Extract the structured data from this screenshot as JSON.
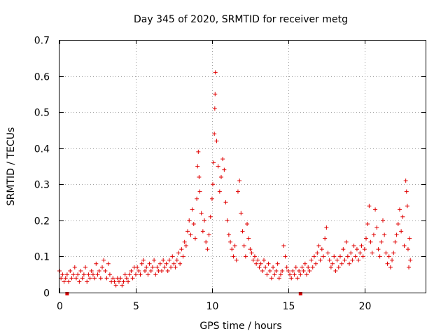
{
  "chart_data": {
    "type": "scatter",
    "title": "Day 345 of 2020, SRMTID for receiver metg",
    "xlabel": "GPS time / hours",
    "ylabel": "SRMTID / TECUs",
    "xlim": [
      0,
      24
    ],
    "ylim": [
      0,
      0.7
    ],
    "x_ticks": [
      0,
      5,
      10,
      15,
      20
    ],
    "x_tick_labels": [
      "0",
      "5",
      "10",
      "15",
      "20"
    ],
    "y_ticks": [
      0,
      0.1,
      0.2,
      0.3,
      0.4,
      0.5,
      0.6,
      0.7
    ],
    "y_tick_labels": [
      "0",
      "0.1",
      "0.2",
      "0.3",
      "0.4",
      "0.5",
      "0.6",
      "0.7"
    ],
    "grid": true,
    "marker": "plus",
    "color": "#e00000",
    "series": [
      {
        "name": "SRMTID",
        "points": [
          [
            0.0,
            0.06
          ],
          [
            0.1,
            0.04
          ],
          [
            0.2,
            0.05
          ],
          [
            0.3,
            0.03
          ],
          [
            0.4,
            0.04
          ],
          [
            0.5,
            0.05
          ],
          [
            0.6,
            0.03
          ],
          [
            0.7,
            0.06
          ],
          [
            0.8,
            0.04
          ],
          [
            0.9,
            0.05
          ],
          [
            1.0,
            0.07
          ],
          [
            1.1,
            0.04
          ],
          [
            1.2,
            0.05
          ],
          [
            1.3,
            0.03
          ],
          [
            1.4,
            0.06
          ],
          [
            1.5,
            0.04
          ],
          [
            1.6,
            0.05
          ],
          [
            1.7,
            0.07
          ],
          [
            1.8,
            0.03
          ],
          [
            1.9,
            0.05
          ],
          [
            2.0,
            0.04
          ],
          [
            2.1,
            0.06
          ],
          [
            2.2,
            0.05
          ],
          [
            2.3,
            0.04
          ],
          [
            2.4,
            0.08
          ],
          [
            2.5,
            0.05
          ],
          [
            2.6,
            0.06
          ],
          [
            2.7,
            0.04
          ],
          [
            2.8,
            0.07
          ],
          [
            2.9,
            0.09
          ],
          [
            3.0,
            0.06
          ],
          [
            3.1,
            0.04
          ],
          [
            3.2,
            0.08
          ],
          [
            3.3,
            0.05
          ],
          [
            3.4,
            0.03
          ],
          [
            3.5,
            0.04
          ],
          [
            3.6,
            0.03
          ],
          [
            3.7,
            0.02
          ],
          [
            3.8,
            0.04
          ],
          [
            3.9,
            0.03
          ],
          [
            4.0,
            0.04
          ],
          [
            4.1,
            0.02
          ],
          [
            4.2,
            0.03
          ],
          [
            4.3,
            0.05
          ],
          [
            4.4,
            0.04
          ],
          [
            4.5,
            0.03
          ],
          [
            4.6,
            0.05
          ],
          [
            4.7,
            0.06
          ],
          [
            4.8,
            0.04
          ],
          [
            4.9,
            0.07
          ],
          [
            5.0,
            0.05
          ],
          [
            5.1,
            0.07
          ],
          [
            5.2,
            0.06
          ],
          [
            5.3,
            0.05
          ],
          [
            5.4,
            0.08
          ],
          [
            5.5,
            0.09
          ],
          [
            5.6,
            0.06
          ],
          [
            5.7,
            0.07
          ],
          [
            5.8,
            0.05
          ],
          [
            5.9,
            0.08
          ],
          [
            6.0,
            0.06
          ],
          [
            6.1,
            0.07
          ],
          [
            6.2,
            0.09
          ],
          [
            6.3,
            0.05
          ],
          [
            6.4,
            0.07
          ],
          [
            6.5,
            0.06
          ],
          [
            6.6,
            0.08
          ],
          [
            6.7,
            0.06
          ],
          [
            6.8,
            0.09
          ],
          [
            6.9,
            0.07
          ],
          [
            7.0,
            0.08
          ],
          [
            7.1,
            0.06
          ],
          [
            7.2,
            0.09
          ],
          [
            7.3,
            0.07
          ],
          [
            7.4,
            0.1
          ],
          [
            7.5,
            0.08
          ],
          [
            7.6,
            0.07
          ],
          [
            7.7,
            0.09
          ],
          [
            7.8,
            0.11
          ],
          [
            7.9,
            0.08
          ],
          [
            8.0,
            0.12
          ],
          [
            8.1,
            0.1
          ],
          [
            8.2,
            0.14
          ],
          [
            8.3,
            0.13
          ],
          [
            8.4,
            0.17
          ],
          [
            8.5,
            0.2
          ],
          [
            8.6,
            0.16
          ],
          [
            8.7,
            0.23
          ],
          [
            8.8,
            0.19
          ],
          [
            8.9,
            0.15
          ],
          [
            9.0,
            0.26
          ],
          [
            9.05,
            0.35
          ],
          [
            9.1,
            0.39
          ],
          [
            9.15,
            0.32
          ],
          [
            9.2,
            0.28
          ],
          [
            9.3,
            0.22
          ],
          [
            9.4,
            0.17
          ],
          [
            9.5,
            0.2
          ],
          [
            9.6,
            0.14
          ],
          [
            9.7,
            0.12
          ],
          [
            9.8,
            0.16
          ],
          [
            9.9,
            0.21
          ],
          [
            10.0,
            0.26
          ],
          [
            10.05,
            0.3
          ],
          [
            10.1,
            0.36
          ],
          [
            10.15,
            0.44
          ],
          [
            10.18,
            0.51
          ],
          [
            10.2,
            0.55
          ],
          [
            10.22,
            0.61
          ],
          [
            10.3,
            0.42
          ],
          [
            10.4,
            0.35
          ],
          [
            10.5,
            0.28
          ],
          [
            10.6,
            0.32
          ],
          [
            10.7,
            0.37
          ],
          [
            10.8,
            0.34
          ],
          [
            10.9,
            0.25
          ],
          [
            11.0,
            0.2
          ],
          [
            11.1,
            0.16
          ],
          [
            11.2,
            0.14
          ],
          [
            11.3,
            0.12
          ],
          [
            11.4,
            0.1
          ],
          [
            11.5,
            0.13
          ],
          [
            11.6,
            0.09
          ],
          [
            11.7,
            0.28
          ],
          [
            11.8,
            0.31
          ],
          [
            11.9,
            0.22
          ],
          [
            12.0,
            0.17
          ],
          [
            12.1,
            0.13
          ],
          [
            12.2,
            0.1
          ],
          [
            12.3,
            0.19
          ],
          [
            12.4,
            0.15
          ],
          [
            12.5,
            0.12
          ],
          [
            12.6,
            0.11
          ],
          [
            12.7,
            0.09
          ],
          [
            12.8,
            0.1
          ],
          [
            12.9,
            0.08
          ],
          [
            13.0,
            0.09
          ],
          [
            13.1,
            0.07
          ],
          [
            13.2,
            0.08
          ],
          [
            13.3,
            0.06
          ],
          [
            13.4,
            0.09
          ],
          [
            13.5,
            0.07
          ],
          [
            13.6,
            0.05
          ],
          [
            13.7,
            0.08
          ],
          [
            13.8,
            0.06
          ],
          [
            13.9,
            0.04
          ],
          [
            14.0,
            0.07
          ],
          [
            14.1,
            0.05
          ],
          [
            14.2,
            0.06
          ],
          [
            14.3,
            0.08
          ],
          [
            14.4,
            0.04
          ],
          [
            14.5,
            0.05
          ],
          [
            14.6,
            0.06
          ],
          [
            14.7,
            0.13
          ],
          [
            14.8,
            0.1
          ],
          [
            14.9,
            0.07
          ],
          [
            15.0,
            0.06
          ],
          [
            15.1,
            0.05
          ],
          [
            15.2,
            0.04
          ],
          [
            15.3,
            0.06
          ],
          [
            15.4,
            0.05
          ],
          [
            15.5,
            0.07
          ],
          [
            15.6,
            0.04
          ],
          [
            15.7,
            0.06
          ],
          [
            15.8,
            0.05
          ],
          [
            15.9,
            0.07
          ],
          [
            16.0,
            0.06
          ],
          [
            16.1,
            0.08
          ],
          [
            16.2,
            0.05
          ],
          [
            16.3,
            0.07
          ],
          [
            16.4,
            0.06
          ],
          [
            16.5,
            0.09
          ],
          [
            16.6,
            0.07
          ],
          [
            16.7,
            0.1
          ],
          [
            16.8,
            0.08
          ],
          [
            16.9,
            0.11
          ],
          [
            17.0,
            0.13
          ],
          [
            17.1,
            0.09
          ],
          [
            17.2,
            0.12
          ],
          [
            17.3,
            0.1
          ],
          [
            17.4,
            0.15
          ],
          [
            17.5,
            0.18
          ],
          [
            17.6,
            0.11
          ],
          [
            17.7,
            0.09
          ],
          [
            17.8,
            0.07
          ],
          [
            17.9,
            0.08
          ],
          [
            18.0,
            0.1
          ],
          [
            18.1,
            0.06
          ],
          [
            18.2,
            0.09
          ],
          [
            18.3,
            0.07
          ],
          [
            18.4,
            0.1
          ],
          [
            18.5,
            0.08
          ],
          [
            18.6,
            0.12
          ],
          [
            18.7,
            0.09
          ],
          [
            18.8,
            0.14
          ],
          [
            18.9,
            0.1
          ],
          [
            19.0,
            0.08
          ],
          [
            19.1,
            0.11
          ],
          [
            19.2,
            0.09
          ],
          [
            19.3,
            0.13
          ],
          [
            19.4,
            0.1
          ],
          [
            19.5,
            0.12
          ],
          [
            19.6,
            0.09
          ],
          [
            19.7,
            0.11
          ],
          [
            19.8,
            0.13
          ],
          [
            19.9,
            0.1
          ],
          [
            20.0,
            0.12
          ],
          [
            20.1,
            0.15
          ],
          [
            20.2,
            0.19
          ],
          [
            20.3,
            0.24
          ],
          [
            20.4,
            0.14
          ],
          [
            20.5,
            0.11
          ],
          [
            20.6,
            0.16
          ],
          [
            20.7,
            0.23
          ],
          [
            20.8,
            0.18
          ],
          [
            20.9,
            0.12
          ],
          [
            21.0,
            0.1
          ],
          [
            21.1,
            0.14
          ],
          [
            21.2,
            0.2
          ],
          [
            21.3,
            0.16
          ],
          [
            21.4,
            0.11
          ],
          [
            21.5,
            0.08
          ],
          [
            21.6,
            0.1
          ],
          [
            21.7,
            0.07
          ],
          [
            21.8,
            0.09
          ],
          [
            21.9,
            0.11
          ],
          [
            22.0,
            0.14
          ],
          [
            22.1,
            0.16
          ],
          [
            22.2,
            0.19
          ],
          [
            22.3,
            0.23
          ],
          [
            22.4,
            0.17
          ],
          [
            22.5,
            0.21
          ],
          [
            22.6,
            0.13
          ],
          [
            22.7,
            0.31
          ],
          [
            22.75,
            0.28
          ],
          [
            22.8,
            0.24
          ],
          [
            22.85,
            0.12
          ],
          [
            22.9,
            0.07
          ],
          [
            22.95,
            0.15
          ],
          [
            23.0,
            0.09
          ]
        ]
      }
    ],
    "bottom_markers_x": [
      0.5,
      15.8
    ]
  }
}
